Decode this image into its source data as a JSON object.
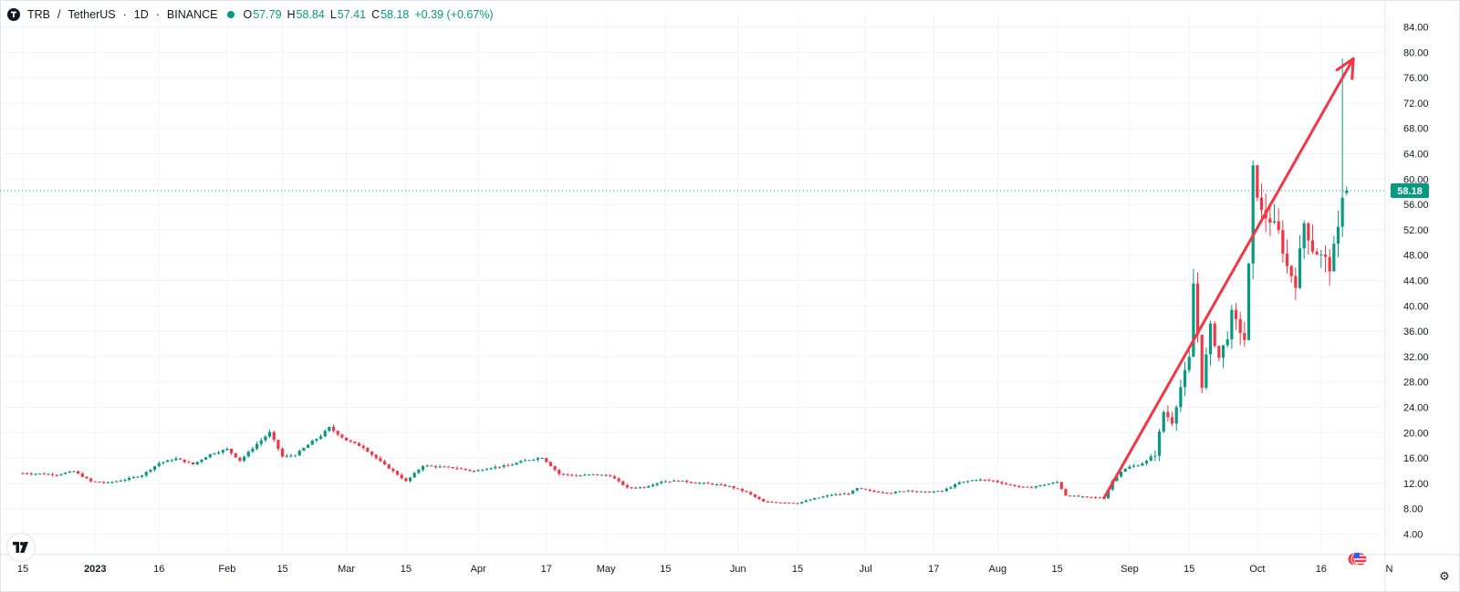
{
  "header": {
    "symbol": "TRB",
    "separator": "/",
    "pair_name": "TetherUS",
    "interval": "1D",
    "exchange": "BINANCE",
    "ohlc": {
      "open_label": "O",
      "open": "57.79",
      "high_label": "H",
      "high": "58.84",
      "low_label": "L",
      "low": "57.41",
      "close_label": "C",
      "close": "58.18",
      "change": "+0.39 (+0.67%)"
    }
  },
  "colors": {
    "up": "#089981",
    "down": "#f23645",
    "arrow": "#f23645",
    "grid": "#f0f3fa",
    "price_line": "#089981"
  },
  "chart_data": {
    "type": "candlestick",
    "ylim": [
      2,
      86
    ],
    "y_ticks": [
      "4.00",
      "8.00",
      "12.00",
      "16.00",
      "20.00",
      "24.00",
      "28.00",
      "32.00",
      "36.00",
      "40.00",
      "44.00",
      "48.00",
      "52.00",
      "56.00",
      "60.00",
      "64.00",
      "68.00",
      "72.00",
      "76.00",
      "80.00",
      "84.00"
    ],
    "x_ticks": [
      {
        "label": "15",
        "day": 0,
        "major": false
      },
      {
        "label": "2023",
        "day": 17,
        "major": true
      },
      {
        "label": "16",
        "day": 32,
        "major": false
      },
      {
        "label": "Feb",
        "day": 48,
        "major": false
      },
      {
        "label": "15",
        "day": 61,
        "major": false
      },
      {
        "label": "Mar",
        "day": 76,
        "major": false
      },
      {
        "label": "15",
        "day": 90,
        "major": false
      },
      {
        "label": "Apr",
        "day": 107,
        "major": false
      },
      {
        "label": "17",
        "day": 123,
        "major": false
      },
      {
        "label": "May",
        "day": 137,
        "major": false
      },
      {
        "label": "15",
        "day": 151,
        "major": false
      },
      {
        "label": "Jun",
        "day": 168,
        "major": false
      },
      {
        "label": "15",
        "day": 182,
        "major": false
      },
      {
        "label": "Jul",
        "day": 198,
        "major": false
      },
      {
        "label": "17",
        "day": 214,
        "major": false
      },
      {
        "label": "Aug",
        "day": 229,
        "major": false
      },
      {
        "label": "15",
        "day": 243,
        "major": false
      },
      {
        "label": "Sep",
        "day": 260,
        "major": false
      },
      {
        "label": "15",
        "day": 274,
        "major": false
      },
      {
        "label": "Oct",
        "day": 290,
        "major": false
      },
      {
        "label": "16",
        "day": 305,
        "major": false
      },
      {
        "label": "N",
        "day": 321,
        "major": false
      }
    ],
    "series": [
      {
        "points": [
          [
            0,
            13.6
          ],
          [
            8,
            13.4
          ],
          [
            12,
            13.9
          ],
          [
            16,
            12.3
          ],
          [
            20,
            12.1
          ],
          [
            24,
            12.6
          ],
          [
            28,
            13.3
          ],
          [
            32,
            15.2
          ],
          [
            36,
            15.9
          ],
          [
            40,
            15.0
          ],
          [
            44,
            16.6
          ],
          [
            48,
            17.4
          ],
          [
            51,
            15.6
          ],
          [
            55,
            18.2
          ],
          [
            58,
            20.0
          ],
          [
            61,
            16.2
          ],
          [
            64,
            16.5
          ],
          [
            68,
            18.6
          ],
          [
            70,
            19.5
          ],
          [
            72,
            20.8
          ],
          [
            76,
            18.8
          ],
          [
            80,
            17.7
          ],
          [
            84,
            15.4
          ],
          [
            88,
            13.4
          ],
          [
            90,
            12.3
          ],
          [
            94,
            14.8
          ],
          [
            98,
            14.6
          ],
          [
            102,
            14.4
          ],
          [
            106,
            13.9
          ],
          [
            110,
            14.5
          ],
          [
            114,
            14.8
          ],
          [
            118,
            15.6
          ],
          [
            122,
            16.1
          ],
          [
            126,
            13.5
          ],
          [
            130,
            13.2
          ],
          [
            134,
            13.4
          ],
          [
            138,
            13.2
          ],
          [
            142,
            11.3
          ],
          [
            146,
            11.4
          ],
          [
            150,
            12.3
          ],
          [
            154,
            12.4
          ],
          [
            158,
            12.1
          ],
          [
            162,
            11.9
          ],
          [
            166,
            11.5
          ],
          [
            170,
            10.6
          ],
          [
            174,
            9.1
          ],
          [
            178,
            9.0
          ],
          [
            182,
            8.9
          ],
          [
            186,
            9.6
          ],
          [
            190,
            10.2
          ],
          [
            194,
            10.4
          ],
          [
            196,
            11.2
          ],
          [
            200,
            10.7
          ],
          [
            204,
            10.5
          ],
          [
            208,
            10.9
          ],
          [
            212,
            10.6
          ],
          [
            216,
            10.8
          ],
          [
            220,
            12.1
          ],
          [
            224,
            12.6
          ],
          [
            228,
            12.4
          ],
          [
            232,
            11.7
          ],
          [
            236,
            11.3
          ],
          [
            240,
            11.8
          ],
          [
            243,
            12.2
          ],
          [
            245,
            10.1
          ],
          [
            250,
            9.8
          ],
          [
            254,
            9.7
          ],
          [
            256,
            12.4
          ],
          [
            258,
            13.9
          ],
          [
            260,
            14.6
          ],
          [
            262,
            14.9
          ],
          [
            264,
            15.5
          ],
          [
            266,
            16.6
          ],
          [
            268,
            23.3
          ],
          [
            270,
            21.7
          ],
          [
            272,
            27.2
          ],
          [
            274,
            31.6
          ],
          [
            275,
            43.5
          ],
          [
            277,
            27.5
          ],
          [
            279,
            36.6
          ],
          [
            281,
            31.8
          ],
          [
            283,
            35.3
          ],
          [
            284,
            38.7
          ],
          [
            287,
            34.7
          ],
          [
            288,
            46.1
          ],
          [
            289,
            61.2
          ],
          [
            291,
            54.6
          ],
          [
            293,
            53.6
          ],
          [
            295,
            51.5
          ],
          [
            297,
            46.2
          ],
          [
            299,
            43.6
          ],
          [
            301,
            53.1
          ],
          [
            303,
            49.0
          ],
          [
            306,
            47.2
          ],
          [
            307,
            46.1
          ],
          [
            309,
            51.8
          ],
          [
            310,
            57.8
          ],
          [
            311,
            58.18
          ]
        ],
        "current_price": "58.18",
        "current_ohlc": {
          "open": 57.79,
          "high": 58.84,
          "low": 57.41,
          "close": 58.18
        },
        "spike_high": 79.0
      }
    ],
    "arrow_annotation": {
      "start": [
        254,
        9.7
      ],
      "end": [
        310,
        79.0
      ]
    },
    "grid": true,
    "price_label_position": "right-axis"
  }
}
